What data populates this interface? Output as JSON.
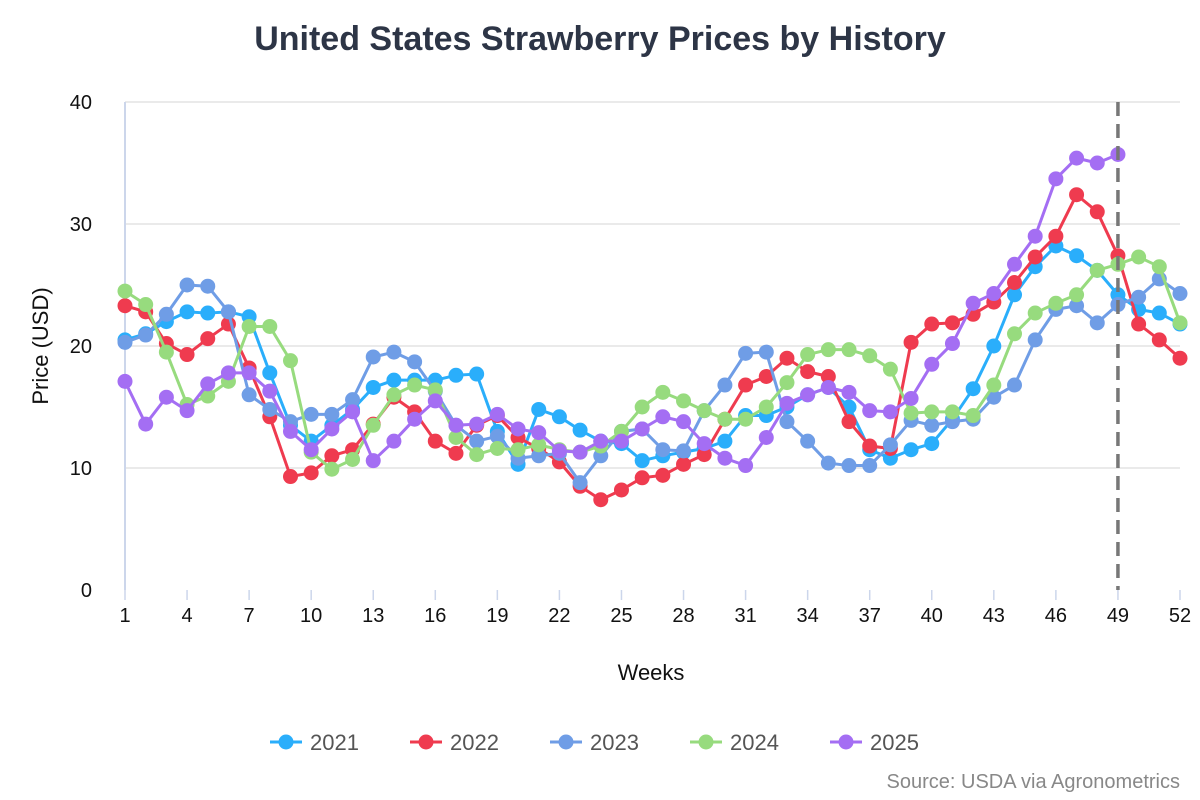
{
  "chart_data": {
    "type": "line",
    "title": "United States Strawberry Prices by History",
    "xlabel": "Weeks",
    "ylabel": "Price (USD)",
    "xlim": [
      1,
      52
    ],
    "ylim": [
      0,
      40
    ],
    "x_ticks": [
      1,
      4,
      7,
      10,
      13,
      16,
      19,
      22,
      25,
      28,
      31,
      34,
      37,
      40,
      43,
      46,
      49,
      52
    ],
    "y_ticks": [
      0,
      10,
      20,
      30,
      40
    ],
    "grid": "horizontal",
    "legend_position": "bottom",
    "marker_line": {
      "week": 49,
      "style": "dashed",
      "color": "#777777"
    },
    "source": "Source: USDA via Agronometrics",
    "series": [
      {
        "name": "2021",
        "color": "#2aaefb",
        "values": [
          20.5,
          21,
          22,
          22.8,
          22.7,
          22.8,
          22.4,
          17.8,
          13.5,
          12.2,
          13.5,
          14.8,
          16.6,
          17.2,
          17.2,
          17.2,
          17.6,
          17.7,
          13,
          10.3,
          14.8,
          14.2,
          13.1,
          12.2,
          12,
          10.6,
          11,
          11.3,
          11.6,
          12.2,
          14.3,
          14.3,
          15,
          16,
          16.6,
          15,
          11.5,
          10.8,
          11.5,
          12,
          14,
          16.5,
          20,
          24.2,
          26.5,
          28.2,
          27.4,
          26.2,
          24.2,
          23,
          22.7,
          21.8
        ]
      },
      {
        "name": "2022",
        "color": "#ef3b4f",
        "values": [
          23.3,
          22.8,
          20.2,
          19.3,
          20.6,
          21.8,
          18.2,
          14.2,
          9.3,
          9.6,
          11,
          11.5,
          13.6,
          15.8,
          14.6,
          12.2,
          11.2,
          13.5,
          14.3,
          12.5,
          11.6,
          10.5,
          8.5,
          7.4,
          8.2,
          9.2,
          9.4,
          10.3,
          11.1,
          14,
          16.8,
          17.5,
          19,
          17.9,
          17.5,
          13.8,
          11.8,
          11.6,
          20.3,
          21.8,
          21.9,
          22.6,
          23.6,
          25.2,
          27.3,
          29,
          32.4,
          31,
          27.4,
          21.8,
          20.5,
          19
        ]
      },
      {
        "name": "2023",
        "color": "#6f9de6",
        "values": [
          20.3,
          20.9,
          22.6,
          25,
          24.9,
          22.8,
          16,
          14.8,
          13.8,
          14.4,
          14.4,
          15.6,
          19.1,
          19.5,
          18.7,
          16.3,
          13.5,
          12.2,
          12.6,
          10.8,
          11,
          11.2,
          8.8,
          11,
          13,
          13.2,
          11.5,
          11.4,
          14.7,
          16.8,
          19.4,
          19.5,
          13.8,
          12.2,
          10.4,
          10.2,
          10.2,
          11.9,
          13.9,
          13.5,
          13.8,
          14,
          15.8,
          16.8,
          20.5,
          23,
          23.3,
          21.9,
          23.4,
          24,
          25.5,
          24.3
        ]
      },
      {
        "name": "2024",
        "color": "#97db7e",
        "values": [
          24.5,
          23.4,
          19.5,
          15.2,
          15.9,
          17.1,
          21.6,
          21.6,
          18.8,
          11.3,
          9.9,
          10.7,
          13.5,
          16,
          16.8,
          16.4,
          12.5,
          11.1,
          11.6,
          11.5,
          11.9,
          11.5,
          11.3,
          11.8,
          13,
          15,
          16.2,
          15.5,
          14.7,
          14,
          14,
          15,
          17,
          19.3,
          19.7,
          19.7,
          19.2,
          18.1,
          14.5,
          14.6,
          14.6,
          14.3,
          16.8,
          21,
          22.7,
          23.5,
          24.2,
          26.2,
          26.7,
          27.3,
          26.5,
          21.9
        ]
      },
      {
        "name": "2025",
        "color": "#a46ef3",
        "values": [
          17.1,
          13.6,
          15.8,
          14.7,
          16.9,
          17.8,
          17.8,
          16.3,
          13,
          11.5,
          13.2,
          14.6,
          10.6,
          12.2,
          14,
          15.5,
          13.5,
          13.6,
          14.4,
          13.2,
          12.9,
          11.4,
          11.3,
          12.2,
          12.2,
          13.2,
          14.2,
          13.8,
          12,
          10.8,
          10.2,
          12.5,
          15.3,
          16,
          16.6,
          16.2,
          14.7,
          14.6,
          15.7,
          18.5,
          20.2,
          23.5,
          24.3,
          26.7,
          29,
          33.7,
          35.4,
          35,
          35.7
        ]
      }
    ]
  }
}
